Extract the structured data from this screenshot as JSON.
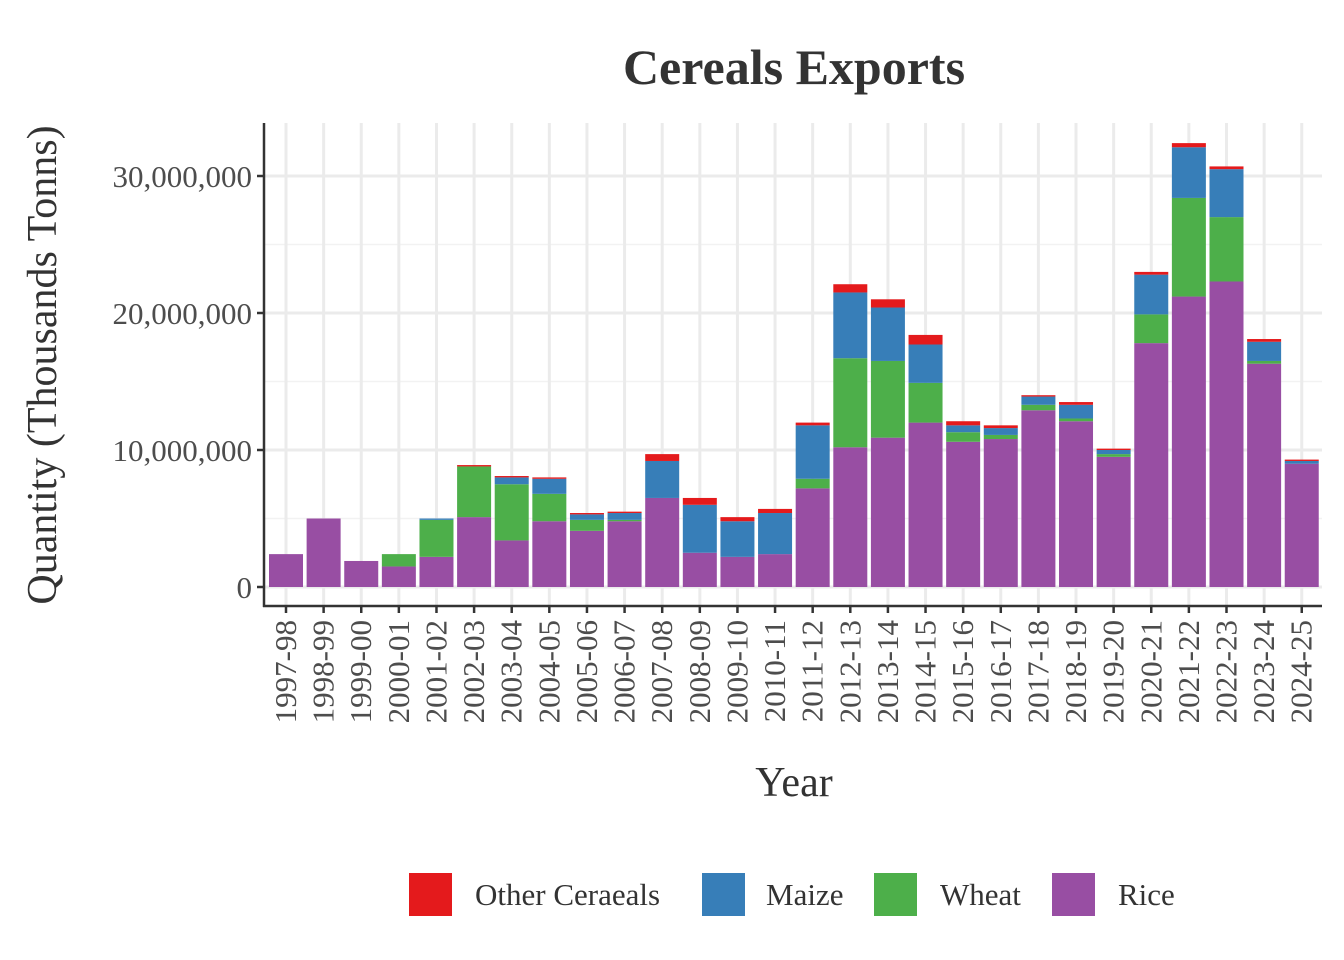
{
  "chart_data": {
    "type": "bar",
    "stacked": true,
    "title": "Cereals Exports",
    "xlabel": "Year",
    "ylabel": "Quantity (Thousands Tonns)",
    "ylim": [
      0,
      34000000
    ],
    "yticks": [
      0,
      10000000,
      20000000,
      30000000
    ],
    "ytick_labels": [
      "0",
      "10,000,000",
      "20,000,000",
      "30,000,000"
    ],
    "grid": true,
    "legend_position": "bottom",
    "categories": [
      "1997-98",
      "1998-99",
      "1999-00",
      "2000-01",
      "2001-02",
      "2002-03",
      "2003-04",
      "2004-05",
      "2005-06",
      "2006-07",
      "2007-08",
      "2008-09",
      "2009-10",
      "2010-11",
      "2011-12",
      "2012-13",
      "2013-14",
      "2014-15",
      "2015-16",
      "2016-17",
      "2017-18",
      "2018-19",
      "2019-20",
      "2020-21",
      "2021-22",
      "2022-23",
      "2023-24",
      "2024-25"
    ],
    "series": [
      {
        "name": "Rice",
        "color": "#984EA3",
        "values": [
          2400000,
          5000000,
          1900000,
          1500000,
          2200000,
          5100000,
          3400000,
          4800000,
          4100000,
          4800000,
          6500000,
          2500000,
          2200000,
          2400000,
          7200000,
          10200000,
          10900000,
          12000000,
          10600000,
          10800000,
          12900000,
          12100000,
          9500000,
          17800000,
          21200000,
          22300000,
          16300000,
          9000000
        ]
      },
      {
        "name": "Wheat",
        "color": "#4DAF4A",
        "values": [
          0,
          0,
          0,
          900000,
          2700000,
          3700000,
          4100000,
          2000000,
          800000,
          100000,
          0,
          0,
          0,
          0,
          700000,
          6500000,
          5600000,
          2900000,
          700000,
          300000,
          400000,
          200000,
          200000,
          2100000,
          7200000,
          4700000,
          200000,
          0
        ]
      },
      {
        "name": "Maize",
        "color": "#377EB8",
        "values": [
          0,
          0,
          0,
          0,
          100000,
          0,
          500000,
          1100000,
          400000,
          500000,
          2700000,
          3500000,
          2600000,
          3000000,
          3900000,
          4800000,
          3900000,
          2800000,
          500000,
          500000,
          600000,
          1000000,
          300000,
          2900000,
          3700000,
          3500000,
          1400000,
          200000
        ]
      },
      {
        "name": "Other Ceraeals",
        "color": "#E41A1C",
        "values": [
          0,
          0,
          0,
          0,
          0,
          100000,
          100000,
          100000,
          100000,
          100000,
          500000,
          500000,
          300000,
          300000,
          200000,
          600000,
          600000,
          700000,
          300000,
          200000,
          100000,
          200000,
          100000,
          200000,
          300000,
          200000,
          200000,
          100000
        ]
      }
    ],
    "legend_order": [
      "Other Ceraeals",
      "Maize",
      "Wheat",
      "Rice"
    ]
  }
}
